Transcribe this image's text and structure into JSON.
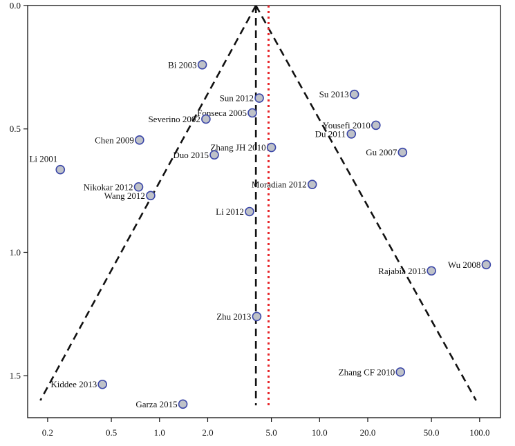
{
  "chart_data": {
    "type": "scatter",
    "title": "",
    "xlabel": "",
    "ylabel": "",
    "x_scale": "log",
    "y_inverted": true,
    "xlim": [
      0.15,
      135
    ],
    "ylim": [
      0.0,
      1.67
    ],
    "x_ticks": [
      {
        "value": 0.2,
        "label": "0.2"
      },
      {
        "value": 0.5,
        "label": "0.5"
      },
      {
        "value": 1.0,
        "label": "1.0"
      },
      {
        "value": 2.0,
        "label": "2.0"
      },
      {
        "value": 5.0,
        "label": "5.0"
      },
      {
        "value": 10.0,
        "label": "10.0"
      },
      {
        "value": 20.0,
        "label": "20.0"
      },
      {
        "value": 50.0,
        "label": "50.0"
      },
      {
        "value": 100.0,
        "label": "100.0"
      }
    ],
    "y_ticks": [
      {
        "value": 0.0,
        "label": "0.0"
      },
      {
        "value": 0.5,
        "label": "0.5"
      },
      {
        "value": 1.0,
        "label": "1.0"
      },
      {
        "value": 1.5,
        "label": "1.5"
      }
    ],
    "grid": false,
    "pooled_estimate": 4.0,
    "reference_line": 4.8,
    "funnel": {
      "apex": [
        4.0,
        0.0
      ],
      "left_bottom": [
        0.18,
        1.6
      ],
      "right_bottom": [
        95,
        1.6
      ]
    },
    "colors": {
      "point_fill": "#bfc2c8",
      "point_stroke": "#3b47a8",
      "funnel_line": "#111111",
      "reference_line": "#e8262a"
    },
    "points": [
      {
        "label": "Bi 2003",
        "x": 1.85,
        "y": 0.24,
        "label_side": "left"
      },
      {
        "label": "Sun 2012",
        "x": 4.2,
        "y": 0.375,
        "label_side": "left"
      },
      {
        "label": "Su 2013",
        "x": 16.5,
        "y": 0.36,
        "label_side": "left"
      },
      {
        "label": "Fonseca 2005",
        "x": 3.8,
        "y": 0.435,
        "label_side": "left"
      },
      {
        "label": "Severino 2002",
        "x": 1.95,
        "y": 0.46,
        "label_side": "left"
      },
      {
        "label": "Yousefi 2010",
        "x": 22.5,
        "y": 0.485,
        "label_side": "left"
      },
      {
        "label": "Du 2011",
        "x": 15.8,
        "y": 0.52,
        "label_side": "left"
      },
      {
        "label": "Chen 2009",
        "x": 0.75,
        "y": 0.545,
        "label_side": "left"
      },
      {
        "label": "Zhang JH 2010",
        "x": 5.0,
        "y": 0.575,
        "label_side": "left"
      },
      {
        "label": "Duo 2015",
        "x": 2.2,
        "y": 0.605,
        "label_side": "left"
      },
      {
        "label": "Gu 2007",
        "x": 33.0,
        "y": 0.595,
        "label_side": "left"
      },
      {
        "label": "Li 2001",
        "x": 0.24,
        "y": 0.665,
        "label_side": "above"
      },
      {
        "label": "Nikokar 2012",
        "x": 0.74,
        "y": 0.735,
        "label_side": "left"
      },
      {
        "label": "Moradian 2012",
        "x": 9.0,
        "y": 0.725,
        "label_side": "left"
      },
      {
        "label": "Wang 2012",
        "x": 0.88,
        "y": 0.77,
        "label_side": "left"
      },
      {
        "label": "Li 2012",
        "x": 3.65,
        "y": 0.835,
        "label_side": "left"
      },
      {
        "label": "Wu 2008",
        "x": 110,
        "y": 1.05,
        "label_side": "left"
      },
      {
        "label": "Rajabia 2013",
        "x": 50,
        "y": 1.075,
        "label_side": "left"
      },
      {
        "label": "Zhu 2013",
        "x": 4.05,
        "y": 1.26,
        "label_side": "left"
      },
      {
        "label": "Zhang CF 2010",
        "x": 32,
        "y": 1.485,
        "label_side": "left"
      },
      {
        "label": "Kiddee 2013",
        "x": 0.44,
        "y": 1.535,
        "label_side": "left"
      },
      {
        "label": "Garza 2015",
        "x": 1.4,
        "y": 1.615,
        "label_side": "left"
      }
    ]
  }
}
